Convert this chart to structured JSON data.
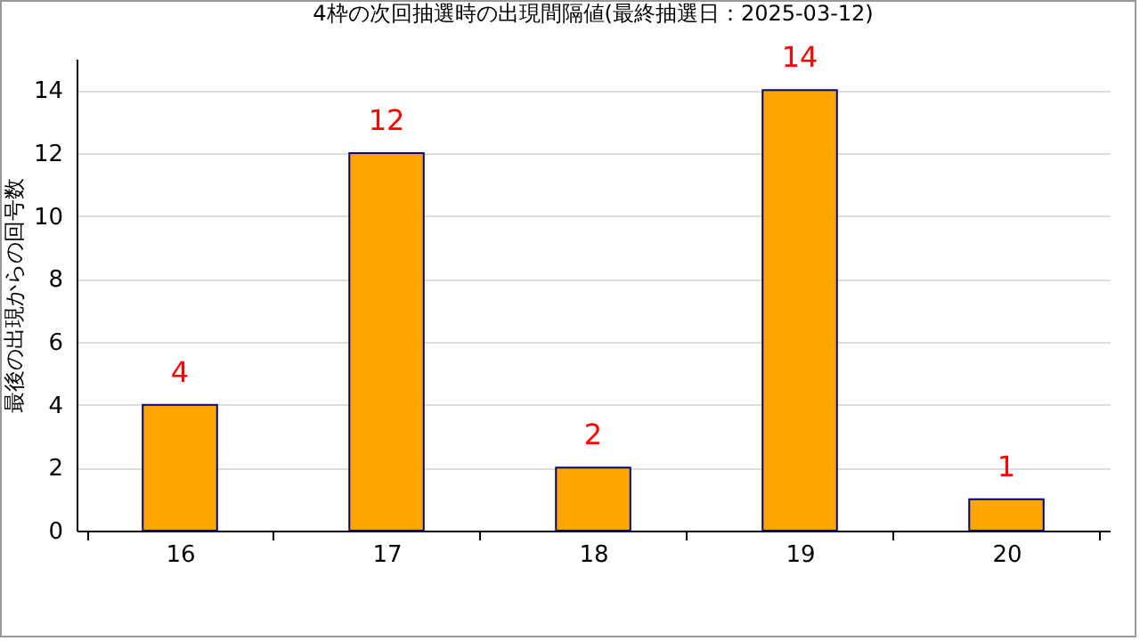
{
  "chart_data": {
    "type": "bar",
    "title": "4枠の次回抽選時の出現間隔値(最終抽選日：2025-03-12)",
    "ylabel": "最後の出現からの回号数",
    "categories": [
      "16",
      "17",
      "18",
      "19",
      "20"
    ],
    "values": [
      4,
      12,
      2,
      14,
      1
    ],
    "color": "#ffa500",
    "ylim": [
      0,
      15
    ],
    "yticks": [
      0,
      2,
      4,
      6,
      8,
      10,
      12,
      14
    ],
    "grid": "y",
    "data_labels": true
  }
}
